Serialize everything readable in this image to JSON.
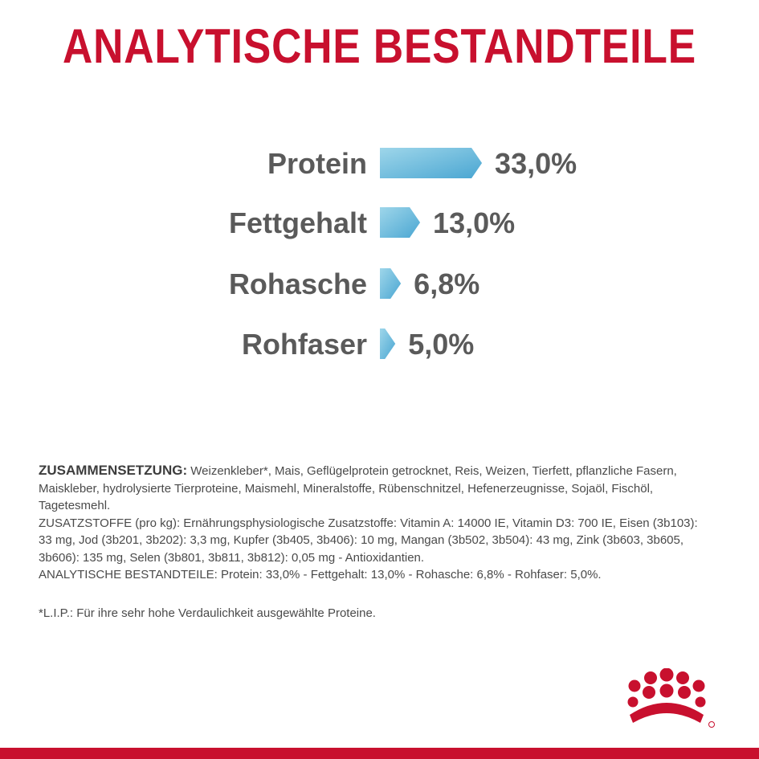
{
  "title": "ANALYTISCHE BESTANDTEILE",
  "colors": {
    "title": "#c8102e",
    "bar_light": "#9ed6ea",
    "bar_dark": "#4aa6d2",
    "label": "#5a5a5a",
    "bottom_bar": "#c8102e"
  },
  "chart_data": {
    "type": "bar",
    "orientation": "horizontal",
    "categories": [
      "Protein",
      "Fettgehalt",
      "Rohasche",
      "Rohfaser"
    ],
    "values": [
      33.0,
      13.0,
      6.8,
      5.0
    ],
    "value_labels": [
      "33,0%",
      "13,0%",
      "6,8%",
      "5,0%"
    ],
    "title": "ANALYTISCHE BESTANDTEILE",
    "xlabel": "",
    "ylabel": "",
    "grid": false
  },
  "composition": {
    "heading": "ZUSAMMENSETZUNG:",
    "ingredients_text": " Weizenkleber*, Mais, Geflügelprotein getrocknet, Reis, Weizen, Tierfett, pflanzliche Fasern, Maiskleber, hydrolysierte Tierproteine, Maismehl, Mineralstoffe, Rübenschnitzel, Hefenerzeugnisse, Sojaöl, Fischöl, Tagetesmehl.",
    "additives_text": "ZUSATZSTOFFE (pro kg): Ernährungsphysiologische Zusatzstoffe: Vitamin A: 14000 IE, Vitamin D3: 700 IE, Eisen (3b103): 33 mg, Jod (3b201, 3b202): 3,3 mg, Kupfer (3b405, 3b406): 10 mg, Mangan (3b502, 3b504): 43 mg, Zink (3b603, 3b605, 3b606): 135 mg, Selen (3b801, 3b811, 3b812): 0,05 mg - Antioxidantien.",
    "analysis_text": "ANALYTISCHE BESTANDTEILE: Protein: 33,0% - Fettgehalt: 13,0% - Rohasche: 6,8% - Rohfaser: 5,0%."
  },
  "footnote": "*L.I.P.: Für ihre sehr hohe Verdaulichkeit ausgewählte Proteine.",
  "logo": {
    "icon": "crown-icon"
  }
}
